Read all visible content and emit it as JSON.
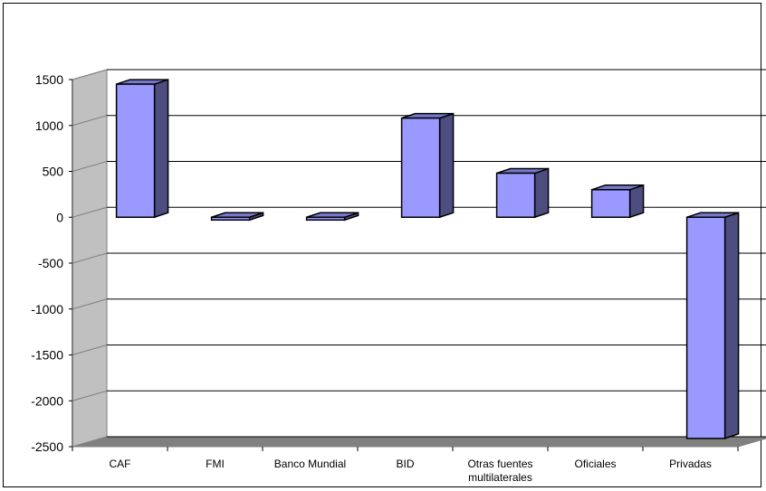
{
  "chart_data": {
    "type": "bar",
    "title": "",
    "xlabel": "",
    "ylabel": "",
    "categories": [
      "CAF",
      "FMI",
      "Banco Mundial",
      "BID",
      "Otras fuentes multilaterales",
      "Oficiales",
      "Privadas"
    ],
    "category_lines": [
      [
        "CAF"
      ],
      [
        "FMI"
      ],
      [
        "Banco Mundial"
      ],
      [
        "BID"
      ],
      [
        "Otras fuentes",
        "multilaterales"
      ],
      [
        "Oficiales"
      ],
      [
        "Privadas"
      ]
    ],
    "values": [
      1450,
      -30,
      -30,
      1080,
      480,
      300,
      -2410
    ],
    "ylim": [
      -2500,
      1500
    ],
    "yticks": [
      1500,
      1000,
      500,
      0,
      -500,
      -1000,
      -1500,
      -2000,
      -2500
    ],
    "grid": true,
    "three_d": true,
    "colors": {
      "bar_front": "#9999ff",
      "bar_side": "#4d4d80",
      "bar_top": "#7777cc",
      "floor": "#808080",
      "wall": "#c0c0c0",
      "grid": "#000000"
    }
  }
}
